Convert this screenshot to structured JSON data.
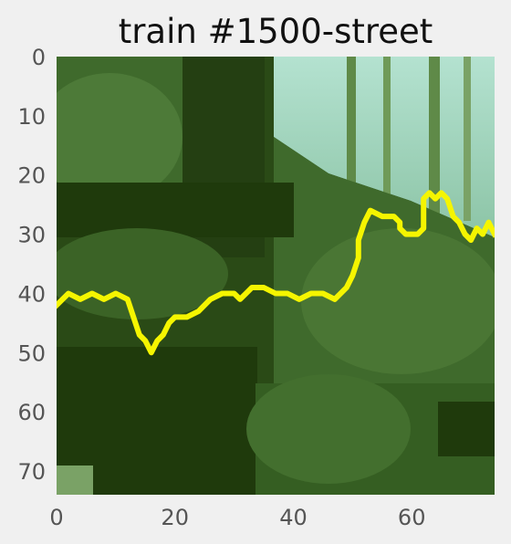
{
  "chart_data": {
    "type": "heatmap",
    "title": "train #1500-street",
    "xlabel": "",
    "ylabel": "",
    "xlim": [
      0,
      74
    ],
    "ylim": [
      74,
      0
    ],
    "x_ticks": [
      "0",
      "20",
      "40",
      "60"
    ],
    "y_ticks": [
      "0",
      "10",
      "20",
      "30",
      "40",
      "50",
      "60",
      "70"
    ],
    "grid": false,
    "background_image": "pixelated green forest image (74x74 px)",
    "colors": {
      "dark": "#1f3a0c",
      "mid": "#3f6a2c",
      "light": "#6f9a58",
      "sky": "#b4e2d0",
      "overlay": "#f5f500"
    },
    "series": [
      {
        "x": [
          0,
          2,
          4,
          6,
          8,
          10,
          12,
          13,
          14,
          15,
          16,
          17,
          18,
          19,
          20,
          22,
          24,
          26,
          28,
          30,
          31,
          32,
          33,
          35,
          37,
          39,
          41,
          43,
          45,
          47,
          49,
          50,
          51,
          51,
          52,
          53,
          55,
          57,
          58,
          58,
          59,
          60,
          61,
          62,
          62,
          63,
          64,
          65,
          66,
          67,
          68,
          69,
          70,
          71,
          72,
          73,
          74
        ],
        "y": [
          42,
          40,
          41,
          40,
          41,
          40,
          41,
          44,
          47,
          48,
          50,
          48,
          47,
          45,
          44,
          44,
          43,
          41,
          40,
          40,
          41,
          40,
          39,
          39,
          40,
          40,
          41,
          40,
          40,
          41,
          39,
          37,
          34,
          31,
          28,
          26,
          27,
          27,
          28,
          29,
          30,
          30,
          30,
          29,
          24,
          23,
          24,
          23,
          24,
          27,
          28,
          30,
          31,
          29,
          30,
          28,
          30
        ]
      }
    ]
  }
}
